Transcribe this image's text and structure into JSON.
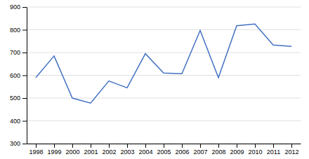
{
  "chart_data": {
    "type": "line",
    "x": [
      1998,
      1999,
      2000,
      2001,
      2002,
      2003,
      2004,
      2005,
      2006,
      2007,
      2008,
      2009,
      2010,
      2011,
      2012
    ],
    "values": [
      590,
      685,
      500,
      478,
      575,
      545,
      695,
      610,
      607,
      797,
      590,
      818,
      825,
      733,
      727
    ],
    "color": "#4472C4",
    "xlim": [
      1997.5,
      2012.5
    ],
    "xticks": [
      1998,
      1999,
      2000,
      2001,
      2002,
      2003,
      2004,
      2005,
      2006,
      2007,
      2008,
      2009,
      2010,
      2011,
      2012
    ],
    "ylim": [
      300,
      900
    ],
    "yticks": [
      300,
      400,
      500,
      600,
      700,
      800,
      900
    ],
    "grid": true
  }
}
